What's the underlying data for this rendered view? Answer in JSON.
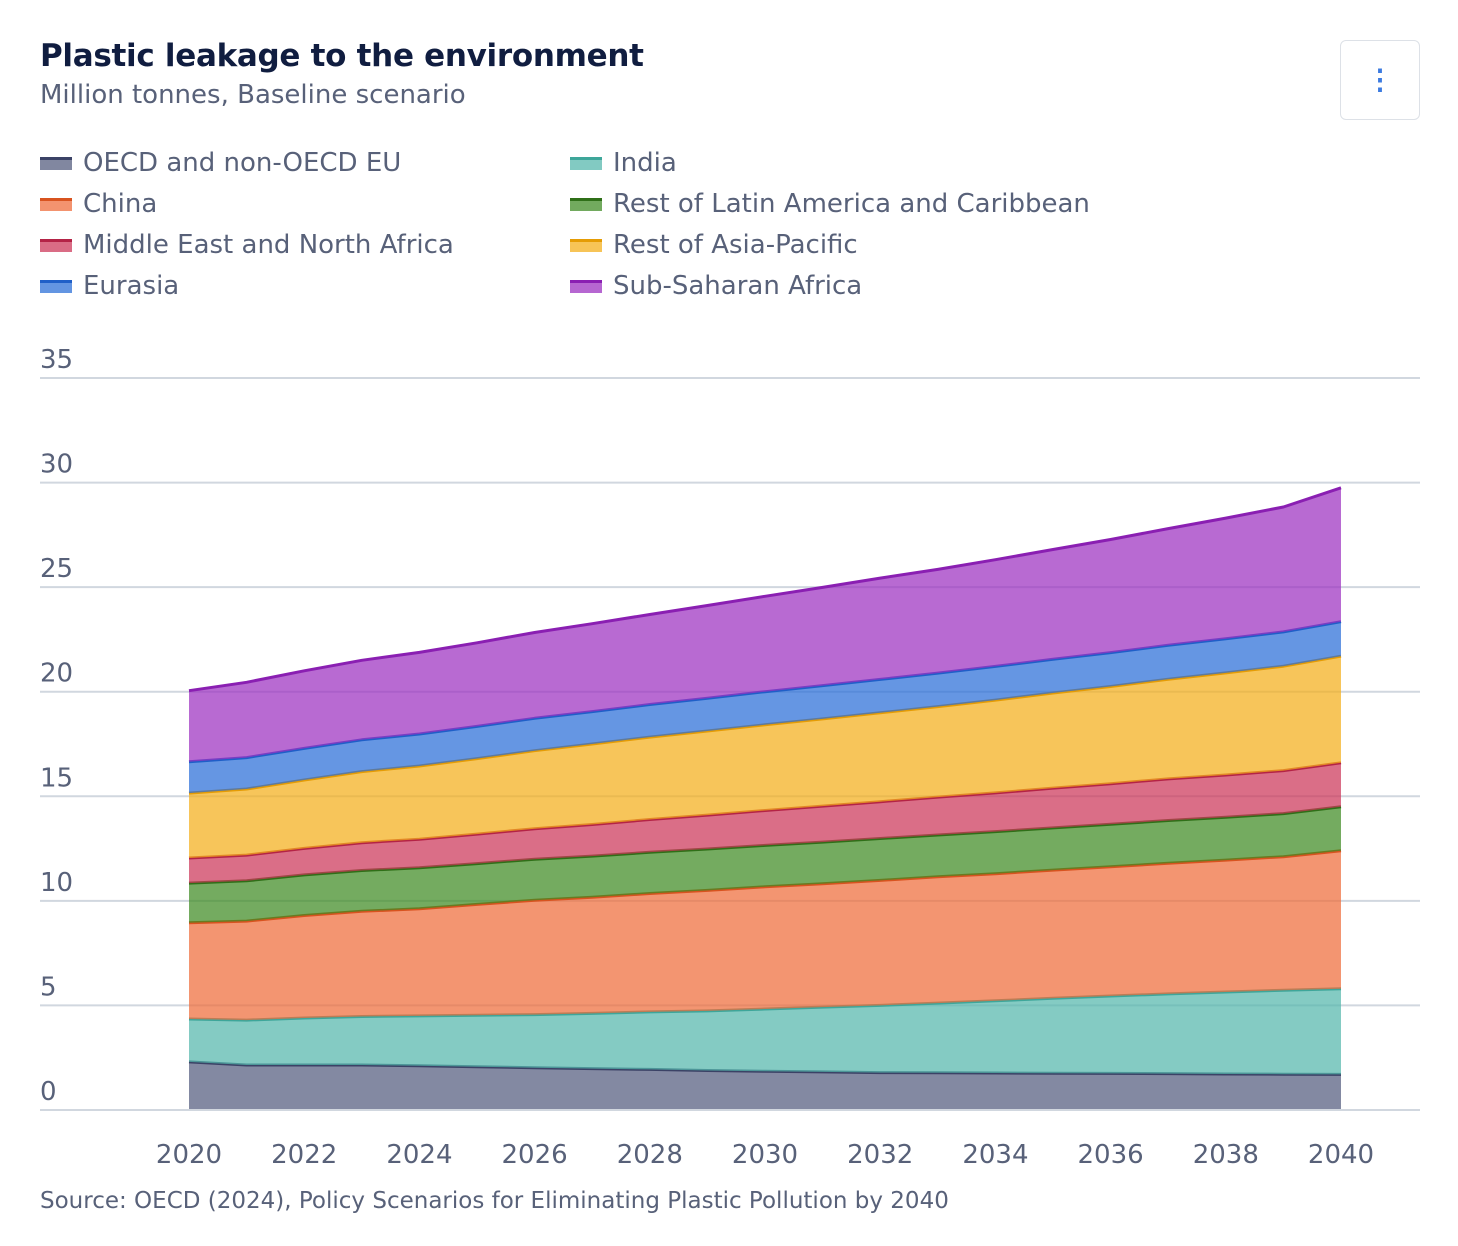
{
  "header": {
    "title": "Plastic leakage to the environment",
    "subtitle": "Million tonnes, Baseline scenario",
    "menu_icon": "⋮"
  },
  "footer": {
    "source": "Source: OECD (2024), Policy Scenarios for Eliminating Plastic Pollution by 2040"
  },
  "colors": {
    "grid": "#d1d7df",
    "axis_text": "#586179",
    "title": "#101d40",
    "menu_icon": "#3c7be0"
  },
  "chart_data": {
    "type": "area",
    "stacked": true,
    "title": "Plastic leakage to the environment",
    "subtitle": "Million tonnes, Baseline scenario",
    "xlabel": "",
    "ylabel": "",
    "x": [
      2020,
      2021,
      2022,
      2023,
      2024,
      2025,
      2026,
      2027,
      2028,
      2029,
      2030,
      2031,
      2032,
      2033,
      2034,
      2035,
      2036,
      2037,
      2038,
      2039,
      2040
    ],
    "x_ticks": [
      2020,
      2022,
      2024,
      2026,
      2028,
      2030,
      2032,
      2034,
      2036,
      2038,
      2040
    ],
    "ylim": [
      0,
      35
    ],
    "y_ticks": [
      0,
      5,
      10,
      15,
      20,
      25,
      30,
      35
    ],
    "grid": true,
    "legend_position": "top",
    "series": [
      {
        "name": "OECD and non-OECD EU",
        "color": "#535b7e",
        "line": "#3b4266",
        "values": [
          2.3,
          2.15,
          2.15,
          2.15,
          2.12,
          2.07,
          2.02,
          1.98,
          1.94,
          1.89,
          1.85,
          1.82,
          1.79,
          1.78,
          1.77,
          1.76,
          1.75,
          1.74,
          1.72,
          1.71,
          1.7
        ]
      },
      {
        "name": "India",
        "color": "#54b7ac",
        "line": "#3ea69a",
        "values": [
          2.05,
          2.15,
          2.25,
          2.32,
          2.38,
          2.46,
          2.54,
          2.64,
          2.75,
          2.85,
          2.98,
          3.1,
          3.21,
          3.33,
          3.45,
          3.58,
          3.7,
          3.81,
          3.92,
          4.02,
          4.1
        ]
      },
      {
        "name": "China",
        "color": "#ee6c3a",
        "line": "#d8531f",
        "values": [
          4.6,
          4.73,
          4.9,
          5.03,
          5.12,
          5.3,
          5.47,
          5.55,
          5.66,
          5.76,
          5.84,
          5.9,
          5.98,
          6.04,
          6.08,
          6.13,
          6.18,
          6.25,
          6.31,
          6.38,
          6.6
        ]
      },
      {
        "name": "Rest of Latin America and Caribbean",
        "color": "#3f8b23",
        "line": "#2f6f18",
        "values": [
          1.9,
          1.93,
          1.94,
          1.95,
          1.96,
          1.95,
          1.96,
          1.97,
          1.97,
          1.98,
          1.98,
          1.99,
          2.0,
          2.0,
          2.01,
          2.02,
          2.03,
          2.04,
          2.05,
          2.06,
          2.1
        ]
      },
      {
        "name": "Middle East and North Africa",
        "color": "#cc3659",
        "line": "#b42346",
        "values": [
          1.2,
          1.23,
          1.27,
          1.33,
          1.37,
          1.41,
          1.46,
          1.51,
          1.57,
          1.62,
          1.67,
          1.72,
          1.76,
          1.81,
          1.85,
          1.9,
          1.94,
          1.99,
          2.02,
          2.06,
          2.1
        ]
      },
      {
        "name": "Rest of Asia-Pacific",
        "color": "#f4ae1a",
        "line": "#e59c05",
        "values": [
          3.1,
          3.16,
          3.27,
          3.4,
          3.5,
          3.61,
          3.73,
          3.85,
          3.94,
          4.02,
          4.1,
          4.17,
          4.25,
          4.33,
          4.44,
          4.55,
          4.65,
          4.77,
          4.88,
          4.99,
          5.1
        ]
      },
      {
        "name": "Eurasia",
        "color": "#2a6ed8",
        "line": "#1f5fc8",
        "values": [
          1.5,
          1.5,
          1.51,
          1.52,
          1.53,
          1.54,
          1.55,
          1.55,
          1.56,
          1.57,
          1.58,
          1.59,
          1.6,
          1.6,
          1.61,
          1.61,
          1.62,
          1.62,
          1.63,
          1.64,
          1.65
        ]
      },
      {
        "name": "Sub-Saharan Africa",
        "color": "#9c30c0",
        "line": "#8a1fb2",
        "values": [
          3.4,
          3.6,
          3.71,
          3.8,
          3.9,
          4.0,
          4.1,
          4.2,
          4.3,
          4.43,
          4.56,
          4.7,
          4.84,
          4.96,
          5.1,
          5.25,
          5.41,
          5.58,
          5.77,
          5.97,
          6.4
        ]
      }
    ]
  }
}
